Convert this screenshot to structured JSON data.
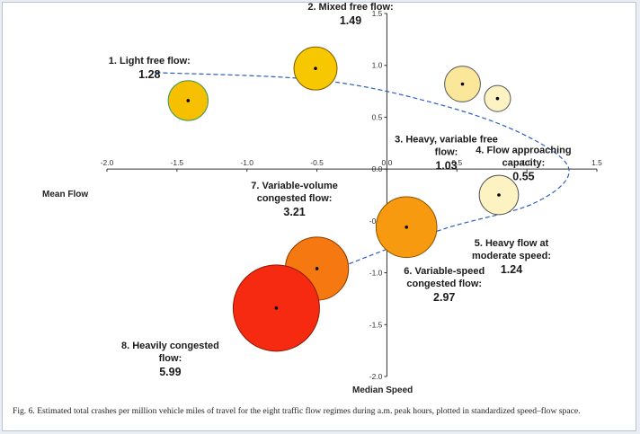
{
  "chart_data": {
    "type": "bubble-scatter",
    "xlabel": "Mean Flow",
    "ylabel": "Median Speed",
    "xlim": [
      -2.0,
      1.5
    ],
    "ylim": [
      -2.0,
      1.5
    ],
    "x_ticks": [
      "-2.0",
      "-1.5",
      "-1.0",
      "-0.5",
      "0.0",
      "0.5",
      "1.0",
      "1.5"
    ],
    "y_ticks": [
      "-2.0",
      "-1.5",
      "-1.0",
      "-0.5",
      "0.0",
      "0.5",
      "1.0",
      "1.5"
    ],
    "grid": false,
    "series": [
      {
        "name": "Traffic flow regimes",
        "points": [
          {
            "id": 1,
            "lines": [
              "1. Light free flow:"
            ],
            "value": "1.28",
            "crash_rate": 1.28,
            "x": -1.42,
            "y": 0.66,
            "color": "#f6c000",
            "edge": "#3a9a5a"
          },
          {
            "id": 2,
            "lines": [
              "2. Mixed free flow:"
            ],
            "value": "1.49",
            "crash_rate": 1.49,
            "x": -0.51,
            "y": 0.97,
            "color": "#f7c800",
            "edge": "#7a5a00"
          },
          {
            "id": 3,
            "lines": [
              "3. Heavy, variable free",
              "flow:"
            ],
            "value": "1.03",
            "crash_rate": 1.03,
            "x": 0.54,
            "y": 0.82,
            "color": "#fbe79a",
            "edge": "#555555"
          },
          {
            "id": 4,
            "lines": [
              "4. Flow approaching",
              "capacity:"
            ],
            "value": "0.55",
            "crash_rate": 0.55,
            "x": 0.79,
            "y": 0.68,
            "color": "#fdf2c2",
            "edge": "#555555"
          },
          {
            "id": 5,
            "lines": [
              "5. Heavy flow at",
              "moderate speed:"
            ],
            "value": "1.24",
            "crash_rate": 1.24,
            "x": 0.8,
            "y": -0.25,
            "color": "#fdf2c2",
            "edge": "#555555"
          },
          {
            "id": 6,
            "lines": [
              "6. Variable-speed",
              "congested flow:"
            ],
            "value": "2.97",
            "crash_rate": 2.97,
            "x": 0.14,
            "y": -0.56,
            "color": "#f89a10",
            "edge": "#8a5000"
          },
          {
            "id": 7,
            "lines": [
              "7. Variable-volume",
              "congested flow:"
            ],
            "value": "3.21",
            "crash_rate": 3.21,
            "x": -0.5,
            "y": -0.96,
            "color": "#f57810",
            "edge": "#8a3a00"
          },
          {
            "id": 8,
            "lines": [
              "8. Heavily congested",
              "flow:"
            ],
            "value": "5.99",
            "crash_rate": 5.99,
            "x": -0.79,
            "y": -1.34,
            "color": "#f52a10",
            "edge": "#8a1a00"
          }
        ]
      }
    ],
    "trend_curve": {
      "style": "dashed",
      "color": "#2b5fc0",
      "points": [
        [
          -1.65,
          0.93
        ],
        [
          -0.5,
          0.86
        ],
        [
          0.3,
          0.65
        ],
        [
          0.95,
          0.35
        ],
        [
          1.3,
          0.0
        ],
        [
          1.05,
          -0.33
        ],
        [
          0.4,
          -0.58
        ],
        [
          -0.3,
          -0.93
        ],
        [
          -0.95,
          -1.3
        ]
      ]
    },
    "caption": "Fig. 6. Estimated total crashes per million vehicle miles of travel for the eight traffic flow regimes during a.m. peak hours, plotted in standardized speed–flow space."
  }
}
